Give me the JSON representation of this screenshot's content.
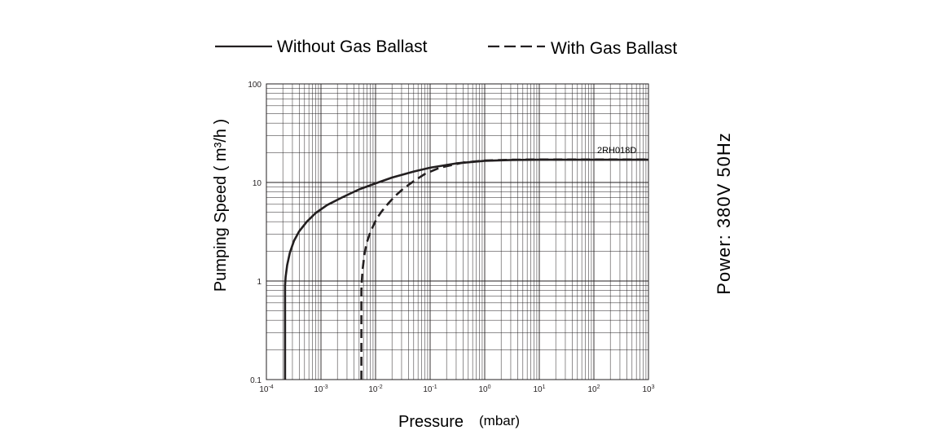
{
  "chart_data": {
    "type": "line",
    "xscale": "log",
    "yscale": "log",
    "xlim": [
      0.0001,
      1000
    ],
    "ylim": [
      0.1,
      100
    ],
    "grid": true,
    "xlabel": "Pressure",
    "xunit": "(mbar)",
    "ylabel": "Pumping Speed ( m³/h )",
    "x_tick_labels": [
      {
        "base": "10",
        "exp": "-4"
      },
      {
        "base": "10",
        "exp": "-3"
      },
      {
        "base": "10",
        "exp": "-2"
      },
      {
        "base": "10",
        "exp": "-1"
      },
      {
        "base": "10",
        "exp": "0"
      },
      {
        "base": "10",
        "exp": "1"
      },
      {
        "base": "10",
        "exp": "2"
      },
      {
        "base": "10",
        "exp": "3"
      }
    ],
    "y_tick_labels": [
      "0.1",
      "1",
      "10",
      "100"
    ],
    "legend_position": "top",
    "curve_label": "2RH018D",
    "side_note": "Power:  380V 50Hz",
    "series": [
      {
        "name": "Without Gas Ballast",
        "style": "solid",
        "color": "#231f20",
        "x": [
          0.00022,
          0.00022,
          0.00022,
          0.000225,
          0.00024,
          0.00027,
          0.00032,
          0.0004,
          0.00055,
          0.0008,
          0.0013,
          0.0025,
          0.005,
          0.01,
          0.02,
          0.05,
          0.1,
          0.3,
          1,
          3,
          10,
          100,
          1000
        ],
        "y": [
          0.1,
          0.5,
          0.9,
          1.1,
          1.45,
          1.95,
          2.55,
          3.2,
          4.0,
          4.9,
          5.9,
          7.1,
          8.5,
          9.8,
          11.2,
          12.9,
          14.1,
          15.6,
          16.6,
          16.9,
          17.0,
          17.0,
          17.0
        ]
      },
      {
        "name": "With Gas Ballast",
        "style": "dashed",
        "color": "#231f20",
        "x": [
          0.0055,
          0.0055,
          0.0055,
          0.0056,
          0.0058,
          0.0062,
          0.0068,
          0.0078,
          0.009,
          0.0105,
          0.013,
          0.017,
          0.023,
          0.032,
          0.05,
          0.08,
          0.15,
          0.4,
          1,
          3,
          10,
          100,
          1000
        ],
        "y": [
          0.1,
          0.4,
          0.8,
          1.0,
          1.3,
          1.8,
          2.4,
          3.0,
          3.6,
          4.3,
          5.1,
          6.1,
          7.3,
          8.6,
          10.3,
          12.2,
          14.1,
          15.9,
          16.7,
          17.0,
          17.1,
          17.1,
          17.1
        ]
      }
    ]
  }
}
